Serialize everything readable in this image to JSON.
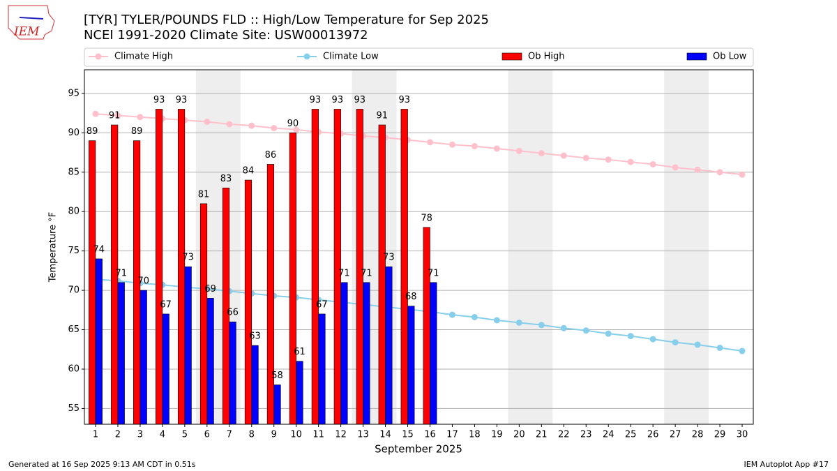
{
  "chart_data": {
    "type": "bar_line",
    "logo_text": "IEM",
    "title": "[TYR] TYLER/POUNDS FLD :: High/Low Temperature for Sep 2025",
    "subtitle": "NCEI 1991-2020 Climate Site: USW00013972",
    "xlabel": "September 2025",
    "ylabel": "Temperature °F",
    "x": [
      1,
      2,
      3,
      4,
      5,
      6,
      7,
      8,
      9,
      10,
      11,
      12,
      13,
      14,
      15,
      16,
      17,
      18,
      19,
      20,
      21,
      22,
      23,
      24,
      25,
      26,
      27,
      28,
      29,
      30
    ],
    "xlim": [
      0.5,
      30.5
    ],
    "xticks": [
      1,
      2,
      3,
      4,
      5,
      6,
      7,
      8,
      9,
      10,
      11,
      12,
      13,
      14,
      15,
      16,
      17,
      18,
      19,
      20,
      21,
      22,
      23,
      24,
      25,
      26,
      27,
      28,
      29,
      30
    ],
    "ylim": [
      53,
      98
    ],
    "yticks": [
      55,
      60,
      65,
      70,
      75,
      80,
      85,
      90,
      95
    ],
    "grid": true,
    "legend": "top",
    "shaded_spans": [
      [
        5.5,
        7.5
      ],
      [
        12.5,
        14.5
      ],
      [
        19.5,
        21.5
      ],
      [
        26.5,
        28.5
      ]
    ],
    "series": [
      {
        "name": "Climate High",
        "kind": "line",
        "color": "#ffc0cb",
        "values": [
          92.4,
          92.2,
          92.0,
          91.8,
          91.6,
          91.4,
          91.1,
          90.9,
          90.6,
          90.4,
          90.1,
          89.9,
          89.6,
          89.4,
          89.1,
          88.8,
          88.5,
          88.3,
          88.0,
          87.7,
          87.4,
          87.1,
          86.8,
          86.6,
          86.3,
          86.0,
          85.6,
          85.3,
          85.0,
          84.7
        ]
      },
      {
        "name": "Climate Low",
        "kind": "line",
        "color": "#87ceeb",
        "values": [
          71.4,
          71.2,
          70.9,
          70.7,
          70.4,
          70.2,
          69.9,
          69.6,
          69.3,
          69.1,
          68.8,
          68.5,
          68.2,
          67.9,
          67.6,
          67.3,
          66.9,
          66.6,
          66.2,
          65.9,
          65.6,
          65.2,
          64.9,
          64.5,
          64.2,
          63.8,
          63.4,
          63.1,
          62.7,
          62.3
        ]
      },
      {
        "name": "Ob High",
        "kind": "bar",
        "offset": -0.3,
        "color": "#ff0000",
        "values": [
          89,
          91,
          89,
          93,
          93,
          81,
          83,
          84,
          86,
          90,
          93,
          93,
          93,
          91,
          93,
          78,
          null,
          null,
          null,
          null,
          null,
          null,
          null,
          null,
          null,
          null,
          null,
          null,
          null,
          null
        ]
      },
      {
        "name": "Ob Low",
        "kind": "bar",
        "offset": 0,
        "color": "#0000ff",
        "values": [
          74,
          71,
          70,
          67,
          73,
          69,
          66,
          63,
          58,
          61,
          67,
          71,
          71,
          73,
          68,
          71,
          null,
          null,
          null,
          null,
          null,
          null,
          null,
          null,
          null,
          null,
          null,
          null,
          null,
          null
        ]
      }
    ],
    "footer_left": "Generated at 16 Sep 2025 9:13 AM CDT in 0.51s",
    "footer_right": "IEM Autoplot App #17"
  }
}
